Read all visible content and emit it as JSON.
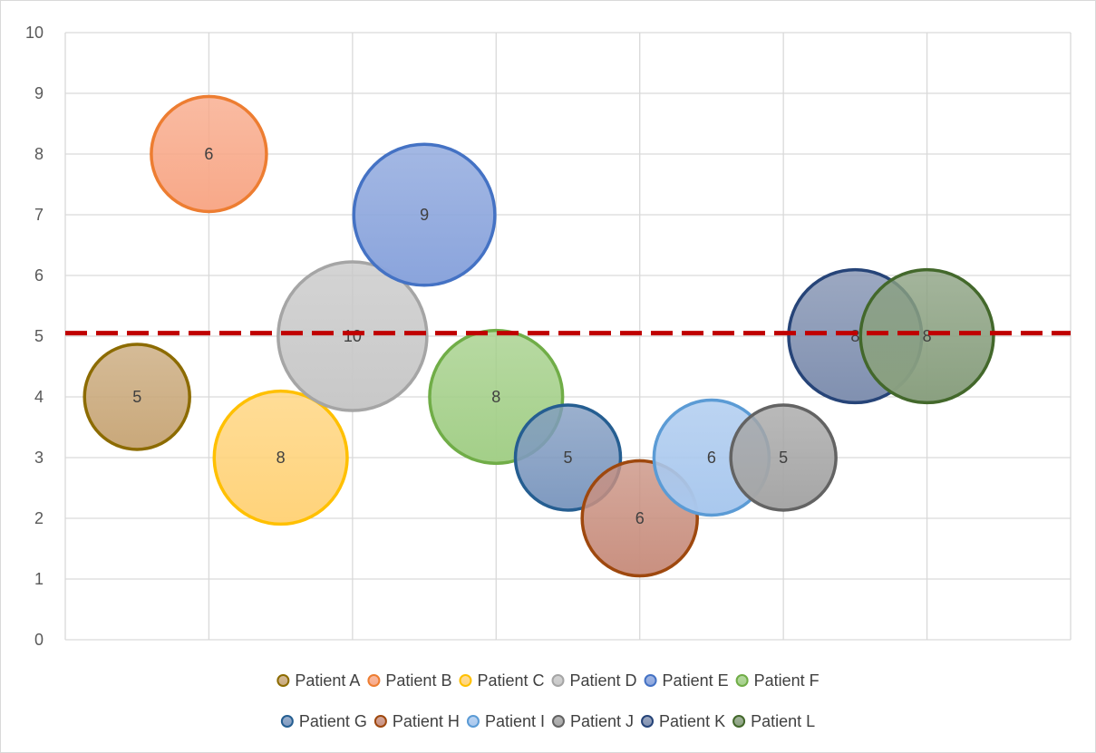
{
  "chart_data": {
    "type": "bubble",
    "title": "",
    "xlabel": "",
    "ylabel": "",
    "ylim": [
      0,
      10
    ],
    "y_ticks": [
      "0",
      "1",
      "2",
      "3",
      "4",
      "5",
      "6",
      "7",
      "8",
      "9",
      "10"
    ],
    "xlim": [
      0,
      7
    ],
    "grid": true,
    "legend_position": "bottom",
    "threshold_line": {
      "y": 5.05,
      "style": "dashed",
      "color": "#c00000"
    },
    "series": [
      {
        "name": "Patient A",
        "x": 0.5,
        "y": 4,
        "size": 5,
        "label": "5",
        "color": "#c9a87a",
        "border": "#8c6b00"
      },
      {
        "name": "Patient B",
        "x": 1.0,
        "y": 8,
        "size": 6,
        "label": "6",
        "color": "#f8a888",
        "border": "#ed7d31"
      },
      {
        "name": "Patient C",
        "x": 1.5,
        "y": 3,
        "size": 8,
        "label": "8",
        "color": "#ffd37a",
        "border": "#ffc000"
      },
      {
        "name": "Patient D",
        "x": 2.0,
        "y": 5,
        "size": 10,
        "label": "10",
        "color": "#c8c8c8",
        "border": "#a5a5a5"
      },
      {
        "name": "Patient E",
        "x": 2.5,
        "y": 7,
        "size": 9,
        "label": "9",
        "color": "#8aa4dc",
        "border": "#4472c4"
      },
      {
        "name": "Patient F",
        "x": 3.0,
        "y": 4,
        "size": 8,
        "label": "8",
        "color": "#a3cf88",
        "border": "#70ad47"
      },
      {
        "name": "Patient G",
        "x": 3.5,
        "y": 3,
        "size": 5,
        "label": "5",
        "color": "#7f9ac0",
        "border": "#255e91"
      },
      {
        "name": "Patient H",
        "x": 4.0,
        "y": 2,
        "size": 6,
        "label": "6",
        "color": "#c99080",
        "border": "#9e480e"
      },
      {
        "name": "Patient I",
        "x": 4.5,
        "y": 3,
        "size": 6,
        "label": "6",
        "color": "#a9c8ee",
        "border": "#5b9bd5"
      },
      {
        "name": "Patient J",
        "x": 5.0,
        "y": 3,
        "size": 5,
        "label": "5",
        "color": "#a6a6a6",
        "border": "#636363"
      },
      {
        "name": "Patient K",
        "x": 5.5,
        "y": 5,
        "size": 8,
        "label": "8",
        "color": "#8090b0",
        "border": "#264478"
      },
      {
        "name": "Patient L",
        "x": 6.0,
        "y": 5,
        "size": 8,
        "label": "8",
        "color": "#8aa080",
        "border": "#43682b"
      }
    ]
  }
}
